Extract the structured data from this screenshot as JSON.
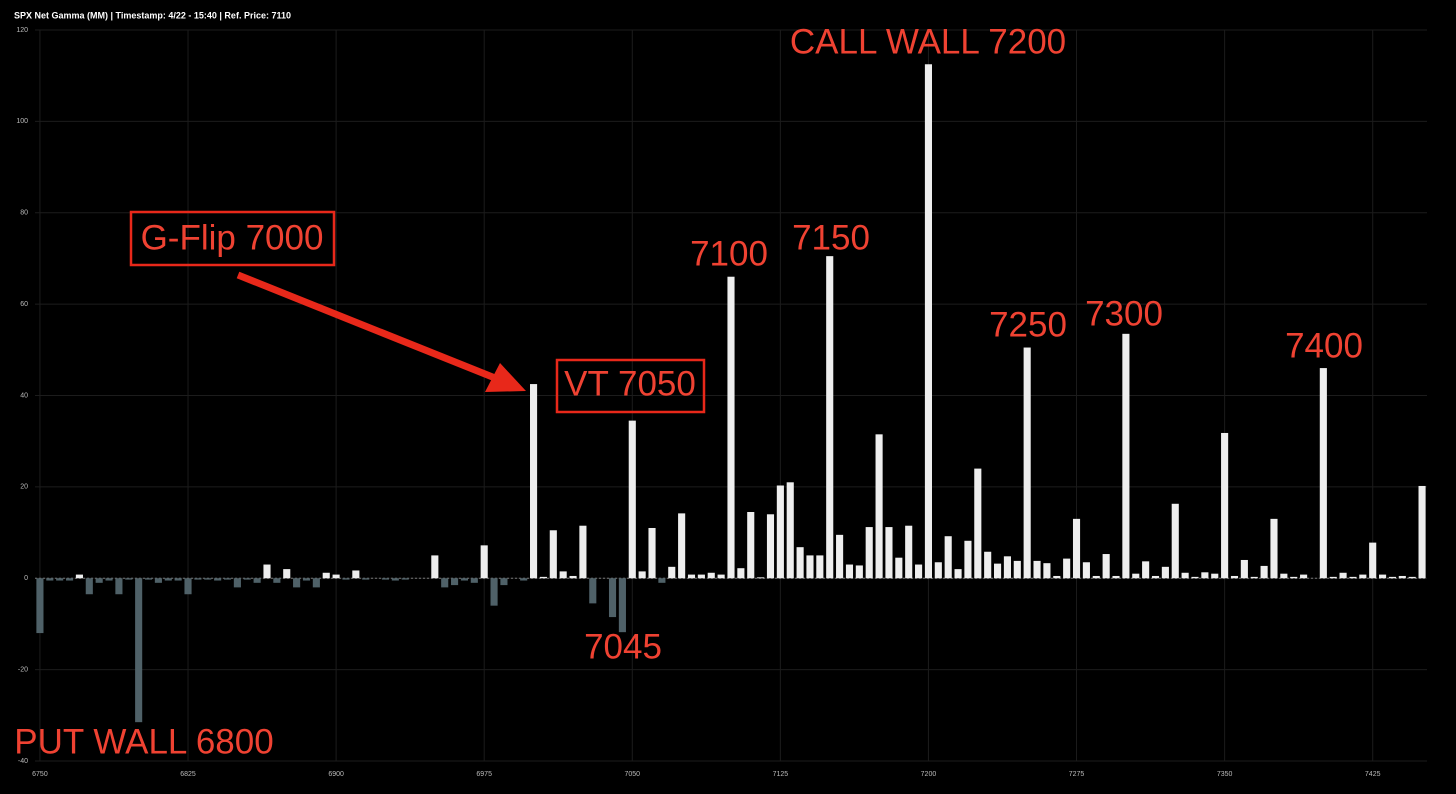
{
  "chart_data": {
    "type": "bar",
    "title": "SPX Net Gamma (MM) | Timestamp: 4/22 - 15:40  | Ref. Price: 7110",
    "x": [
      6750,
      6755,
      6760,
      6765,
      6770,
      6775,
      6780,
      6785,
      6790,
      6795,
      6800,
      6805,
      6810,
      6815,
      6820,
      6825,
      6830,
      6835,
      6840,
      6845,
      6850,
      6855,
      6860,
      6865,
      6870,
      6875,
      6880,
      6885,
      6890,
      6895,
      6900,
      6905,
      6910,
      6915,
      6920,
      6925,
      6930,
      6935,
      6940,
      6945,
      6950,
      6955,
      6960,
      6965,
      6970,
      6975,
      6980,
      6985,
      6990,
      6995,
      7000,
      7005,
      7010,
      7015,
      7020,
      7025,
      7030,
      7035,
      7040,
      7045,
      7050,
      7055,
      7060,
      7065,
      7070,
      7075,
      7080,
      7085,
      7090,
      7095,
      7100,
      7105,
      7110,
      7115,
      7120,
      7125,
      7130,
      7135,
      7140,
      7145,
      7150,
      7155,
      7160,
      7165,
      7170,
      7175,
      7180,
      7185,
      7190,
      7195,
      7200,
      7205,
      7210,
      7215,
      7220,
      7225,
      7230,
      7235,
      7240,
      7245,
      7250,
      7255,
      7260,
      7265,
      7270,
      7275,
      7280,
      7285,
      7290,
      7295,
      7300,
      7305,
      7310,
      7315,
      7320,
      7325,
      7330,
      7335,
      7340,
      7345,
      7350,
      7355,
      7360,
      7365,
      7370,
      7375,
      7380,
      7385,
      7390,
      7395,
      7400,
      7405,
      7410,
      7415,
      7420,
      7425,
      7430,
      7435,
      7440,
      7445,
      7450
    ],
    "values": [
      -12,
      -0.5,
      -0.5,
      -0.5,
      0.8,
      -3.5,
      -1,
      -0.5,
      -3.5,
      -0.3,
      -31.5,
      -0.3,
      -1,
      -0.5,
      -0.5,
      -3.5,
      -0.3,
      -0.3,
      -0.5,
      -0.3,
      -2,
      -0.3,
      -1,
      3,
      -1,
      2,
      -2,
      -0.5,
      -2,
      1.2,
      0.8,
      -0.3,
      1.7,
      -0.3,
      0,
      -0.3,
      -0.5,
      -0.3,
      0,
      0,
      5,
      -2,
      -1.5,
      -0.5,
      -1,
      7.2,
      -6,
      -1.5,
      0,
      -0.5,
      42.5,
      0.3,
      10.5,
      1.5,
      0.5,
      11.5,
      -5.5,
      0,
      -8.5,
      -11.8,
      34.5,
      1.5,
      11,
      -1,
      2.5,
      14.2,
      0.8,
      0.8,
      1.2,
      0.8,
      66,
      2.2,
      14.5,
      0.2,
      14,
      20.3,
      21,
      6.8,
      5,
      5,
      70.5,
      9.5,
      3,
      2.8,
      11.2,
      31.5,
      11.2,
      4.5,
      11.5,
      3,
      112.5,
      3.5,
      9.2,
      2,
      8.2,
      24,
      5.8,
      3.2,
      4.8,
      3.8,
      50.5,
      3.8,
      3.3,
      0.5,
      4.3,
      13,
      3.5,
      0.5,
      5.3,
      0.5,
      53.5,
      1,
      3.7,
      0.5,
      2.5,
      16.3,
      1.2,
      0.3,
      1.3,
      1,
      31.8,
      0.5,
      4,
      0.3,
      2.7,
      13,
      1,
      0.3,
      0.8,
      0,
      46,
      0.3,
      1.2,
      0.3,
      0.8,
      7.8,
      0.8,
      0.3,
      0.5,
      0.3,
      20.2
    ],
    "colors": {
      "positive": "#eeeeee",
      "negative": "#4f6168"
    },
    "xlim": [
      6747.5,
      7452.5
    ],
    "xticks": [
      6750,
      6825,
      6900,
      6975,
      7050,
      7125,
      7200,
      7275,
      7350,
      7425
    ],
    "ylim": [
      -40,
      120
    ],
    "yticks": [
      -40,
      -20,
      0,
      20,
      40,
      60,
      80,
      100,
      120
    ],
    "grid": true,
    "annotations": [
      "CALL WALL 7200",
      "G-Flip 7000",
      "7100",
      "7150",
      "7250",
      "7300",
      "7400",
      "VT 7050",
      "7045",
      "PUT WALL 6800"
    ]
  }
}
